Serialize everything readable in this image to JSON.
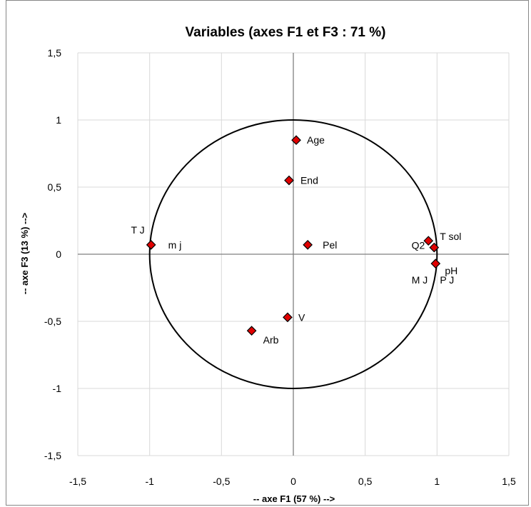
{
  "chart_data": {
    "type": "scatter",
    "title": "Variables (axes F1 et F3 : 71 %)",
    "xlabel": "-- axe F1 (57 %) -->",
    "ylabel": "-- axe F3 (13 %) -->",
    "xlim": [
      -1.5,
      1.5
    ],
    "ylim": [
      -1.5,
      1.5
    ],
    "x_ticks": [
      "-1,5",
      "-1",
      "-0,5",
      "0",
      "0,5",
      "1",
      "1,5"
    ],
    "y_ticks": [
      "1,5",
      "1",
      "0,5",
      "0",
      "-0,5",
      "-1",
      "-1,5"
    ],
    "grid": true,
    "correlation_circle": true,
    "marker_color": "#e00000",
    "points": [
      {
        "label": "Age",
        "x": 0.02,
        "y": 0.85
      },
      {
        "label": "End",
        "x": -0.03,
        "y": 0.55
      },
      {
        "label": "Pel",
        "x": 0.1,
        "y": 0.07
      },
      {
        "label": "T J",
        "x": -0.99,
        "y": 0.07
      },
      {
        "label": "m j",
        "x": -0.99,
        "y": 0.07
      },
      {
        "label": "T sol",
        "x": 0.94,
        "y": 0.1
      },
      {
        "label": "Q2",
        "x": 0.98,
        "y": 0.05
      },
      {
        "label": "pH",
        "x": 0.99,
        "y": -0.07
      },
      {
        "label": "M J",
        "x": 0.99,
        "y": -0.07
      },
      {
        "label": "P J",
        "x": 0.99,
        "y": -0.07
      },
      {
        "label": "V",
        "x": -0.04,
        "y": -0.47
      },
      {
        "label": "Arb",
        "x": -0.29,
        "y": -0.57
      }
    ]
  }
}
